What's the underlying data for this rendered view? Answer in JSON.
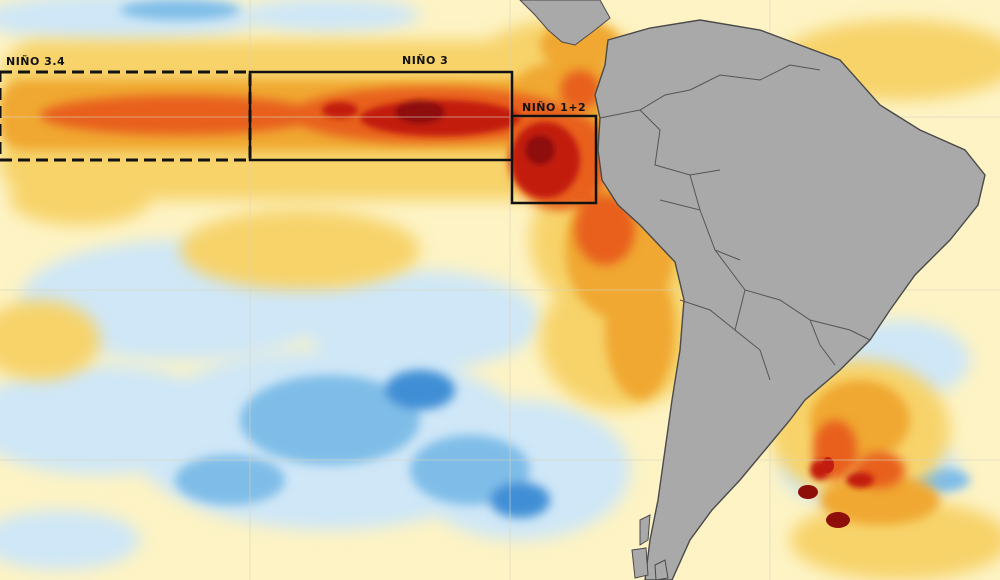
{
  "map": {
    "type": "sea-surface-temperature-anomaly",
    "regions": [
      {
        "id": "nino34",
        "label": "NIÑO 3.4",
        "border": "dashed"
      },
      {
        "id": "nino3",
        "label": "NIÑO 3",
        "border": "solid"
      },
      {
        "id": "nino12",
        "label": "NIÑO 1+2",
        "border": "solid"
      }
    ],
    "colors": {
      "land": "#a9a9a9",
      "land_border": "#4a4a4a",
      "neutral_ocean": "#fdf3c4",
      "warm_light": "#f7d36a",
      "warm_medium": "#f0a830",
      "warm_strong": "#e8611a",
      "warm_extreme": "#c21d10",
      "warm_peak": "#8e0f0a",
      "cool_light": "#cfe7f7",
      "cool_medium": "#7fbde8",
      "cool_strong": "#3f8fd6",
      "region_outline": "#111111",
      "grid_line": "#d9d4c0"
    }
  }
}
